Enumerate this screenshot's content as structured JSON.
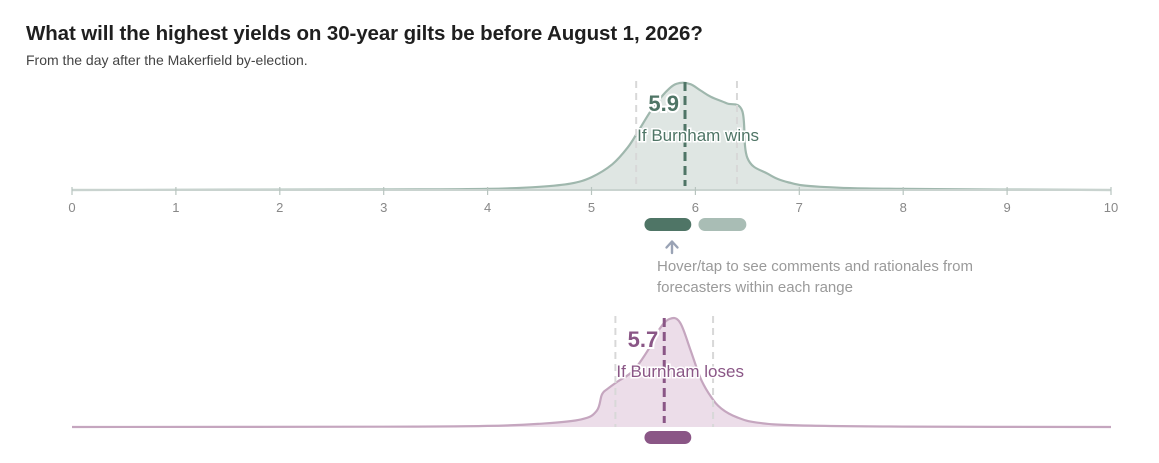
{
  "header": {
    "title": "What will the highest yields on 30-year gilts be before August 1, 2026?",
    "subtitle": "From the day after the Makerfield by-election."
  },
  "hint": {
    "line1": "Hover/tap to see comments and rationales from",
    "line2": "forecasters within each range"
  },
  "colors": {
    "wins_fill": "#dfe6e3",
    "wins_line": "#9fb7ad",
    "wins_accent": "#4f7566",
    "wins_bar_light": "#a9bdb5",
    "loses_fill": "#ecdde9",
    "loses_line": "#c5a6bf",
    "loses_accent": "#8a5686",
    "axis": "#c9d3cf",
    "quantile": "#d8d8d8"
  },
  "chart_data": [
    {
      "type": "area",
      "name": "If Burnham wins",
      "xlim": [
        0,
        10
      ],
      "x_ticks": [
        "0",
        "1",
        "2",
        "3",
        "4",
        "5",
        "6",
        "7",
        "8",
        "9",
        "10"
      ],
      "median": 5.9,
      "median_label": "5.9",
      "quantile_lines": [
        5.43,
        6.4
      ],
      "range_bars": [
        [
          5.5,
          5.97
        ],
        [
          6.02,
          6.5
        ]
      ],
      "density": {
        "x": [
          0,
          3,
          4,
          4.5,
          4.8,
          5.0,
          5.2,
          5.35,
          5.45,
          5.6,
          5.75,
          5.85,
          5.95,
          6.05,
          6.15,
          6.3,
          6.45,
          6.5,
          6.7,
          6.9,
          7.2,
          8,
          10
        ],
        "y": [
          0.0,
          0.005,
          0.01,
          0.03,
          0.06,
          0.12,
          0.24,
          0.4,
          0.55,
          0.78,
          0.95,
          1.0,
          0.99,
          0.93,
          0.87,
          0.81,
          0.74,
          0.3,
          0.15,
          0.07,
          0.03,
          0.01,
          0.0
        ]
      }
    },
    {
      "type": "area",
      "name": "If Burnham loses",
      "xlim": [
        0,
        10
      ],
      "median": 5.7,
      "median_label": "5.7",
      "quantile_lines": [
        5.23,
        6.17
      ],
      "range_bars": [
        [
          5.5,
          5.97
        ]
      ],
      "density": {
        "x": [
          0,
          3,
          4,
          4.5,
          4.9,
          5.05,
          5.1,
          5.15,
          5.25,
          5.4,
          5.55,
          5.65,
          5.75,
          5.85,
          5.95,
          6.05,
          6.15,
          6.25,
          6.4,
          6.6,
          7,
          8,
          10
        ],
        "y": [
          0.0,
          0.003,
          0.01,
          0.03,
          0.07,
          0.15,
          0.3,
          0.35,
          0.42,
          0.52,
          0.72,
          0.9,
          1.0,
          0.97,
          0.72,
          0.45,
          0.28,
          0.17,
          0.09,
          0.04,
          0.015,
          0.004,
          0.0
        ]
      }
    }
  ]
}
